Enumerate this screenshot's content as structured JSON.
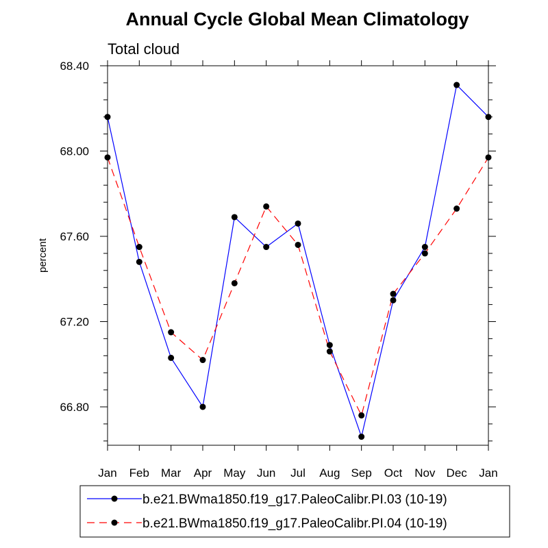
{
  "chart_data": {
    "type": "line",
    "title": "Annual Cycle Global Mean Climatology",
    "subtitle": "Total cloud",
    "xlabel": "",
    "ylabel": "percent",
    "categories": [
      "Jan",
      "Feb",
      "Mar",
      "Apr",
      "May",
      "Jun",
      "Jul",
      "Aug",
      "Sep",
      "Oct",
      "Nov",
      "Dec",
      "Jan"
    ],
    "ylim": [
      66.62,
      68.4
    ],
    "yticks": [
      66.8,
      67.2,
      67.6,
      68.0,
      68.4
    ],
    "ytick_labels": [
      "66.80",
      "67.20",
      "67.60",
      "68.00",
      "68.40"
    ],
    "grid": false,
    "legend_position": "bottom",
    "series": [
      {
        "name": "b.e21.BWma1850.f19_g17.PaleoCalibr.PI.03 (10-19)",
        "color": "#0000ff",
        "line_style": "solid",
        "marker": "filled-circle",
        "values": [
          68.16,
          67.48,
          67.03,
          66.8,
          67.69,
          67.55,
          67.66,
          67.09,
          66.66,
          67.3,
          67.55,
          68.31,
          68.16
        ]
      },
      {
        "name": "b.e21.BWma1850.f19_g17.PaleoCalibr.PI.04 (10-19)",
        "color": "#ff0000",
        "line_style": "dashed",
        "marker": "filled-circle",
        "values": [
          67.97,
          67.55,
          67.15,
          67.02,
          67.38,
          67.74,
          67.56,
          67.06,
          66.76,
          67.33,
          67.52,
          67.73,
          67.97
        ]
      }
    ]
  }
}
